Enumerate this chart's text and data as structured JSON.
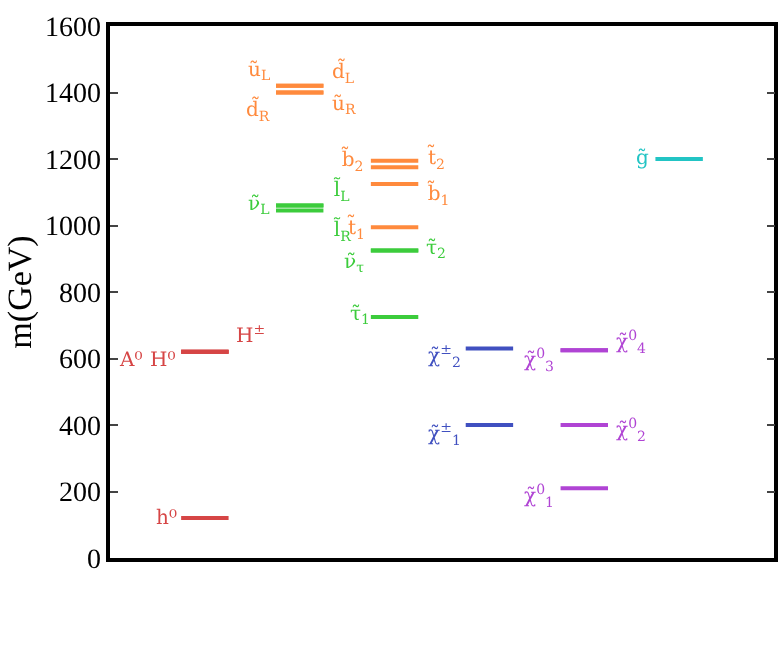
{
  "chart_data": {
    "type": "line",
    "ylabel": "m(GeV)",
    "ylim": [
      0,
      1600
    ],
    "yticks": [
      0,
      200,
      400,
      600,
      800,
      1000,
      1200,
      1400,
      1600
    ],
    "categories": [
      null,
      null,
      null,
      null,
      null,
      null,
      null,
      null,
      null,
      null,
      null,
      null,
      null,
      null
    ],
    "tick_labels": "y",
    "marker": "none",
    "line_style": "solid",
    "series": [
      {
        "name": "h⁰",
        "color": "#d64545",
        "values": [
          null,
          120,
          120,
          null,
          null,
          null,
          null,
          null,
          null,
          null,
          null,
          null,
          null,
          null
        ]
      },
      {
        "name": "A⁰",
        "color": "#d64545",
        "values": [
          null,
          620,
          620,
          null,
          null,
          null,
          null,
          null,
          null,
          null,
          null,
          null,
          null,
          null
        ]
      },
      {
        "name": "H⁰",
        "color": "#d64545",
        "values": [
          null,
          620,
          620,
          null,
          null,
          null,
          null,
          null,
          null,
          null,
          null,
          null,
          null,
          null
        ]
      },
      {
        "name": "H$^{±}$",
        "color": "#d64545",
        "values": [
          null,
          620,
          620,
          null,
          null,
          null,
          null,
          null,
          null,
          null,
          null,
          null,
          null,
          null
        ]
      },
      {
        "name": "ũ$_{L}$",
        "color": "#ff8a3d",
        "values": [
          null,
          null,
          null,
          1420,
          1420,
          null,
          null,
          null,
          null,
          null,
          null,
          null,
          null,
          null
        ]
      },
      {
        "name": "d̃$_{L}$",
        "color": "#ff8a3d",
        "values": [
          null,
          null,
          null,
          1420,
          1420,
          null,
          null,
          null,
          null,
          null,
          null,
          null,
          null,
          null
        ]
      },
      {
        "name": "d̃$_{R}$",
        "color": "#ff8a3d",
        "values": [
          null,
          null,
          null,
          1400,
          1400,
          null,
          null,
          null,
          null,
          null,
          null,
          null,
          null,
          null
        ]
      },
      {
        "name": "ũ$_{R}$",
        "color": "#ff8a3d",
        "values": [
          null,
          null,
          null,
          1400,
          1400,
          null,
          null,
          null,
          null,
          null,
          null,
          null,
          null,
          null
        ]
      },
      {
        "name": "b̃$_{2}$",
        "color": "#ff8a3d",
        "values": [
          null,
          null,
          null,
          null,
          null,
          1195,
          1195,
          null,
          null,
          null,
          null,
          null,
          null,
          null
        ]
      },
      {
        "name": "t̃$_{2}$",
        "color": "#ff8a3d",
        "values": [
          null,
          null,
          null,
          null,
          null,
          1175,
          1175,
          null,
          null,
          null,
          null,
          null,
          null,
          null
        ]
      },
      {
        "name": "b̃$_{1}$",
        "color": "#ff8a3d",
        "values": [
          null,
          null,
          null,
          null,
          null,
          1125,
          1125,
          null,
          null,
          null,
          null,
          null,
          null,
          null
        ]
      },
      {
        "name": "t̃$_{1}$",
        "color": "#ff8a3d",
        "values": [
          null,
          null,
          null,
          null,
          null,
          995,
          995,
          null,
          null,
          null,
          null,
          null,
          null,
          null
        ]
      },
      {
        "name": "ν̃$_{τ}$",
        "color": "#3ccc3c",
        "values": [
          null,
          null,
          null,
          null,
          null,
          925,
          925,
          null,
          null,
          null,
          null,
          null,
          null,
          null
        ]
      },
      {
        "name": "τ̃$_{2}$",
        "color": "#3ccc3c",
        "values": [
          null,
          null,
          null,
          null,
          null,
          925,
          925,
          null,
          null,
          null,
          null,
          null,
          null,
          null
        ]
      },
      {
        "name": "τ̃$_{1}$",
        "color": "#3ccc3c",
        "values": [
          null,
          null,
          null,
          null,
          null,
          725,
          725,
          null,
          null,
          null,
          null,
          null,
          null,
          null
        ]
      },
      {
        "name": "ν̃$_{L}$",
        "color": "#3ccc3c",
        "values": [
          null,
          null,
          null,
          1060,
          1060,
          null,
          null,
          null,
          null,
          null,
          null,
          null,
          null,
          null
        ]
      },
      {
        "name": "l̃$_{L}$",
        "color": "#3ccc3c",
        "values": [
          null,
          null,
          null,
          1060,
          1060,
          null,
          null,
          null,
          null,
          null,
          null,
          null,
          null,
          null
        ]
      },
      {
        "name": "l̃$_{R}$",
        "color": "#3ccc3c",
        "values": [
          null,
          null,
          null,
          1045,
          1045,
          null,
          null,
          null,
          null,
          null,
          null,
          null,
          null,
          null
        ]
      },
      {
        "name": "g̃",
        "color": "#22c4c4",
        "values": [
          null,
          null,
          null,
          null,
          null,
          null,
          null,
          null,
          null,
          null,
          null,
          1200,
          1200,
          null
        ]
      },
      {
        "name": "χ̃$^{±}$$_{2}$",
        "color": "#4050c0",
        "values": [
          null,
          null,
          null,
          null,
          null,
          null,
          null,
          630,
          630,
          null,
          null,
          null,
          null,
          null
        ]
      },
      {
        "name": "χ̃$^{±}$$_{1}$",
        "color": "#4050c0",
        "values": [
          null,
          null,
          null,
          null,
          null,
          null,
          null,
          400,
          400,
          null,
          null,
          null,
          null,
          null
        ]
      },
      {
        "name": "χ̃$^{0}$$_{3}$",
        "color": "#b044d4",
        "values": [
          null,
          null,
          null,
          null,
          null,
          null,
          null,
          null,
          null,
          625,
          625,
          null,
          null,
          null
        ]
      },
      {
        "name": "χ̃$^{0}$$_{4}$",
        "color": "#b044d4",
        "values": [
          null,
          null,
          null,
          null,
          null,
          null,
          null,
          null,
          null,
          625,
          625,
          null,
          null,
          null
        ]
      },
      {
        "name": "χ̃$^{0}$$_{2}$",
        "color": "#b044d4",
        "values": [
          null,
          null,
          null,
          null,
          null,
          null,
          null,
          null,
          null,
          400,
          400,
          null,
          null,
          null
        ]
      },
      {
        "name": "χ̃$^{0}$$_{1}$",
        "color": "#b044d4",
        "values": [
          null,
          null,
          null,
          null,
          null,
          null,
          null,
          null,
          null,
          210,
          210,
          null,
          null,
          null
        ]
      }
    ]
  }
}
